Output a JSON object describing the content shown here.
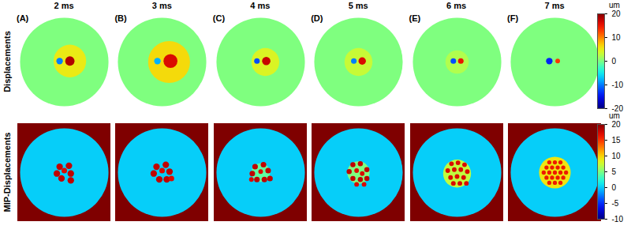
{
  "chart_data": [
    {
      "type": "heatmap",
      "row_label": "Displacements",
      "colorbar": {
        "label": "um",
        "range": [
          -20,
          20
        ],
        "ticks": [
          -20,
          -10,
          0,
          10,
          20
        ]
      },
      "background": 0,
      "outside": null,
      "panels": [
        {
          "title": "2 ms",
          "letter": "(A)",
          "spots": [
            {
              "x": 0.12,
              "y": 0.02,
              "size": 0.35,
              "value": 5
            },
            {
              "x": -0.1,
              "y": 0.02,
              "size": 0.07,
              "value": -10
            },
            {
              "x": 0.12,
              "y": 0.02,
              "size": 0.1,
              "value": 18
            }
          ]
        },
        {
          "title": "3 ms",
          "letter": "(B)",
          "spots": [
            {
              "x": 0.15,
              "y": 0.0,
              "size": 0.45,
              "value": 6
            },
            {
              "x": -0.1,
              "y": 0.02,
              "size": 0.07,
              "value": -8
            },
            {
              "x": 0.18,
              "y": 0.02,
              "size": 0.15,
              "value": 16
            }
          ]
        },
        {
          "title": "4 ms",
          "letter": "(C)",
          "spots": [
            {
              "x": 0.1,
              "y": 0.0,
              "size": 0.3,
              "value": 4
            },
            {
              "x": -0.08,
              "y": 0.02,
              "size": 0.06,
              "value": -12
            },
            {
              "x": 0.12,
              "y": 0.02,
              "size": 0.09,
              "value": 17
            }
          ]
        },
        {
          "title": "5 ms",
          "letter": "(D)",
          "spots": [
            {
              "x": 0.0,
              "y": 0.0,
              "size": 0.3,
              "value": 3
            },
            {
              "x": -0.1,
              "y": 0.02,
              "size": 0.06,
              "value": -10
            },
            {
              "x": 0.08,
              "y": 0.02,
              "size": 0.08,
              "value": 16
            }
          ]
        },
        {
          "title": "6 ms",
          "letter": "(E)",
          "spots": [
            {
              "x": 0.0,
              "y": 0.0,
              "size": 0.25,
              "value": 2
            },
            {
              "x": -0.08,
              "y": 0.02,
              "size": 0.06,
              "value": -12
            },
            {
              "x": 0.08,
              "y": 0.02,
              "size": 0.06,
              "value": 15
            }
          ]
        },
        {
          "title": "7 ms",
          "letter": "(F)",
          "spots": [
            {
              "x": -0.12,
              "y": 0.02,
              "size": 0.07,
              "value": -14
            },
            {
              "x": 0.06,
              "y": 0.02,
              "size": 0.05,
              "value": 13
            }
          ]
        }
      ]
    },
    {
      "type": "heatmap",
      "row_label": "MIP-Displacements",
      "colorbar": {
        "label": "um",
        "range": [
          -10,
          20
        ],
        "ticks": [
          -10,
          -5,
          0,
          5,
          10,
          15,
          20
        ]
      },
      "background": 0,
      "outside": 20,
      "panels": [
        {
          "spots": [
            {
              "x": -0.1,
              "y": 0.12,
              "size": 0.07,
              "value": 18
            },
            {
              "x": 0.1,
              "y": 0.14,
              "size": 0.07,
              "value": 18
            },
            {
              "x": -0.16,
              "y": -0.02,
              "size": 0.07,
              "value": 18
            },
            {
              "x": 0.14,
              "y": -0.02,
              "size": 0.07,
              "value": 18
            },
            {
              "x": 0.0,
              "y": 0.04,
              "size": 0.06,
              "value": 17
            },
            {
              "x": -0.06,
              "y": -0.12,
              "size": 0.07,
              "value": 18
            },
            {
              "x": 0.14,
              "y": -0.16,
              "size": 0.07,
              "value": 18
            }
          ]
        },
        {
          "spots": [
            {
              "x": -0.12,
              "y": 0.12,
              "size": 0.07,
              "value": 18
            },
            {
              "x": 0.08,
              "y": 0.16,
              "size": 0.07,
              "value": 18
            },
            {
              "x": -0.18,
              "y": -0.02,
              "size": 0.07,
              "value": 18
            },
            {
              "x": 0.16,
              "y": 0.02,
              "size": 0.07,
              "value": 18
            },
            {
              "x": 0.0,
              "y": 0.04,
              "size": 0.06,
              "value": 17
            },
            {
              "x": -0.06,
              "y": -0.14,
              "size": 0.07,
              "value": 18
            },
            {
              "x": 0.1,
              "y": -0.14,
              "size": 0.07,
              "value": 18
            },
            {
              "x": 0.2,
              "y": -0.12,
              "size": 0.06,
              "value": 17
            }
          ]
        },
        {
          "spots": [
            {
              "x": 0.0,
              "y": 0.0,
              "size": 0.2,
              "value": 4
            },
            {
              "x": -0.12,
              "y": 0.12,
              "size": 0.06,
              "value": 18
            },
            {
              "x": 0.06,
              "y": 0.16,
              "size": 0.06,
              "value": 18
            },
            {
              "x": -0.18,
              "y": -0.02,
              "size": 0.06,
              "value": 18
            },
            {
              "x": 0.16,
              "y": 0.04,
              "size": 0.06,
              "value": 18
            },
            {
              "x": 0.0,
              "y": 0.02,
              "size": 0.05,
              "value": 17
            },
            {
              "x": -0.08,
              "y": -0.14,
              "size": 0.06,
              "value": 18
            },
            {
              "x": 0.08,
              "y": -0.14,
              "size": 0.06,
              "value": 18
            },
            {
              "x": 0.2,
              "y": -0.12,
              "size": 0.06,
              "value": 18
            },
            {
              "x": -0.2,
              "y": -0.14,
              "size": 0.05,
              "value": 17
            }
          ]
        },
        {
          "spots": [
            {
              "x": 0.0,
              "y": 0.0,
              "size": 0.24,
              "value": 5
            },
            {
              "x": -0.12,
              "y": 0.16,
              "size": 0.055,
              "value": 18
            },
            {
              "x": 0.04,
              "y": 0.18,
              "size": 0.055,
              "value": 18
            },
            {
              "x": -0.2,
              "y": 0.02,
              "size": 0.055,
              "value": 18
            },
            {
              "x": 0.18,
              "y": 0.06,
              "size": 0.055,
              "value": 18
            },
            {
              "x": -0.04,
              "y": 0.04,
              "size": 0.05,
              "value": 17
            },
            {
              "x": 0.08,
              "y": -0.02,
              "size": 0.05,
              "value": 17
            },
            {
              "x": -0.12,
              "y": -0.12,
              "size": 0.055,
              "value": 18
            },
            {
              "x": 0.04,
              "y": -0.14,
              "size": 0.055,
              "value": 18
            },
            {
              "x": 0.18,
              "y": -0.12,
              "size": 0.055,
              "value": 18
            },
            {
              "x": -0.04,
              "y": -0.24,
              "size": 0.05,
              "value": 17
            },
            {
              "x": 0.12,
              "y": -0.24,
              "size": 0.05,
              "value": 17
            }
          ]
        },
        {
          "spots": [
            {
              "x": 0.0,
              "y": -0.02,
              "size": 0.3,
              "value": 7
            },
            {
              "x": -0.12,
              "y": 0.18,
              "size": 0.05,
              "value": 17
            },
            {
              "x": 0.02,
              "y": 0.2,
              "size": 0.05,
              "value": 17
            },
            {
              "x": 0.16,
              "y": 0.16,
              "size": 0.05,
              "value": 17
            },
            {
              "x": -0.2,
              "y": 0.04,
              "size": 0.05,
              "value": 17
            },
            {
              "x": -0.06,
              "y": 0.06,
              "size": 0.05,
              "value": 17
            },
            {
              "x": 0.08,
              "y": 0.06,
              "size": 0.05,
              "value": 17
            },
            {
              "x": 0.22,
              "y": 0.02,
              "size": 0.05,
              "value": 17
            },
            {
              "x": -0.14,
              "y": -0.1,
              "size": 0.05,
              "value": 17
            },
            {
              "x": 0.0,
              "y": -0.08,
              "size": 0.05,
              "value": 17
            },
            {
              "x": 0.14,
              "y": -0.1,
              "size": 0.05,
              "value": 17
            },
            {
              "x": -0.08,
              "y": -0.22,
              "size": 0.05,
              "value": 17
            },
            {
              "x": 0.06,
              "y": -0.22,
              "size": 0.05,
              "value": 17
            },
            {
              "x": 0.2,
              "y": -0.22,
              "size": 0.05,
              "value": 17
            }
          ]
        },
        {
          "spots": [
            {
              "x": 0.0,
              "y": 0.0,
              "size": 0.34,
              "value": 9
            },
            {
              "x": 0.0,
              "y": 0.0,
              "size": 0.045,
              "value": 16
            },
            {
              "x": 0.12,
              "y": 0.0,
              "size": 0.045,
              "value": 16
            },
            {
              "x": 0.06,
              "y": 0.104,
              "size": 0.045,
              "value": 16
            },
            {
              "x": -0.06,
              "y": 0.104,
              "size": 0.045,
              "value": 16
            },
            {
              "x": -0.12,
              "y": 0.0,
              "size": 0.045,
              "value": 16
            },
            {
              "x": -0.06,
              "y": -0.104,
              "size": 0.045,
              "value": 16
            },
            {
              "x": 0.06,
              "y": -0.104,
              "size": 0.045,
              "value": 16
            },
            {
              "x": 0.24,
              "y": 0.0,
              "size": 0.045,
              "value": 16
            },
            {
              "x": 0.18,
              "y": 0.104,
              "size": 0.045,
              "value": 16
            },
            {
              "x": 0.12,
              "y": 0.208,
              "size": 0.045,
              "value": 16
            },
            {
              "x": 0.0,
              "y": 0.208,
              "size": 0.045,
              "value": 16
            },
            {
              "x": -0.12,
              "y": 0.208,
              "size": 0.045,
              "value": 16
            },
            {
              "x": -0.18,
              "y": 0.104,
              "size": 0.045,
              "value": 16
            },
            {
              "x": -0.24,
              "y": 0.0,
              "size": 0.045,
              "value": 16
            },
            {
              "x": -0.18,
              "y": -0.104,
              "size": 0.045,
              "value": 16
            },
            {
              "x": -0.12,
              "y": -0.208,
              "size": 0.045,
              "value": 16
            },
            {
              "x": 0.0,
              "y": -0.208,
              "size": 0.045,
              "value": 16
            },
            {
              "x": 0.12,
              "y": -0.208,
              "size": 0.045,
              "value": 16
            },
            {
              "x": 0.18,
              "y": -0.104,
              "size": 0.045,
              "value": 16
            }
          ]
        }
      ]
    }
  ]
}
